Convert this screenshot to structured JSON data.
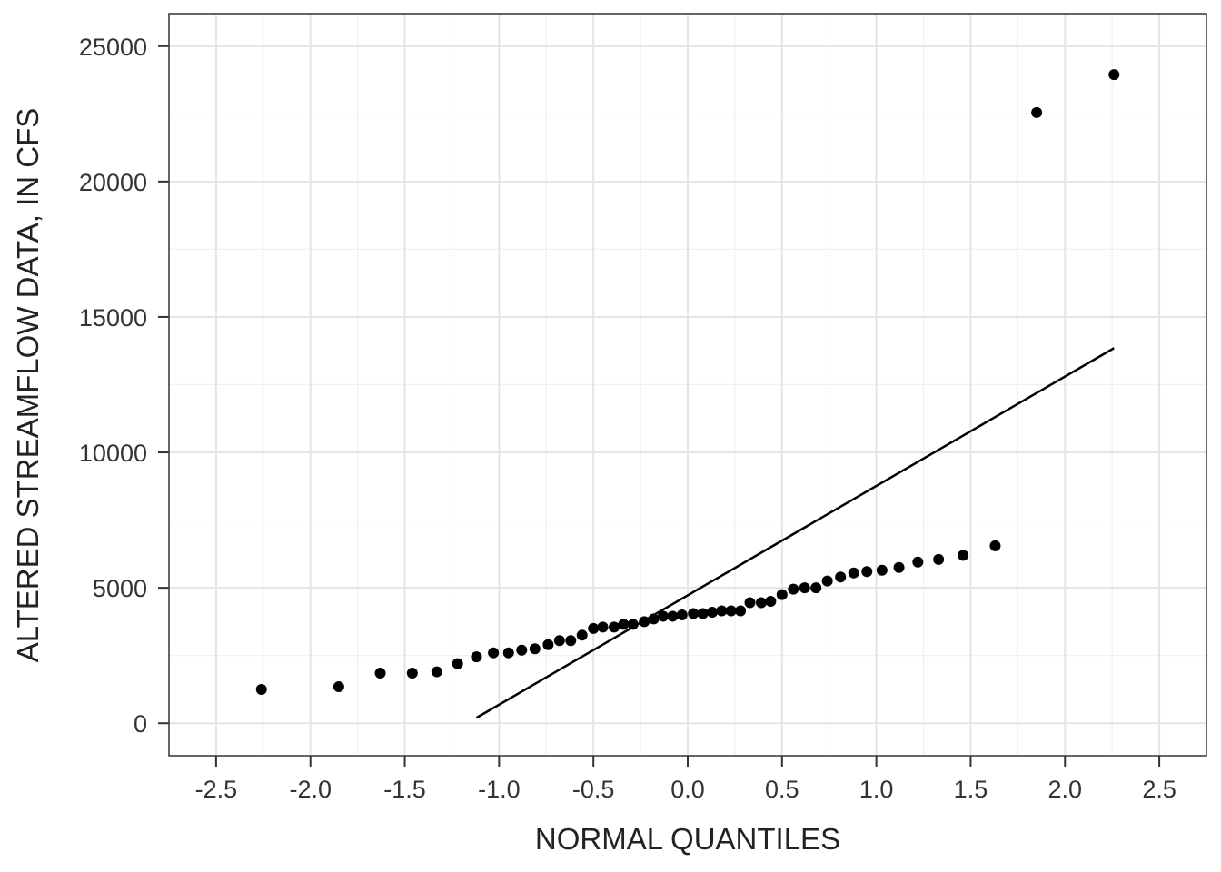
{
  "chart_data": {
    "type": "scatter",
    "xlabel": "NORMAL QUANTILES",
    "ylabel": "ALTERED STREAMFLOW DATA, IN CFS",
    "xlim": [
      -2.75,
      2.75
    ],
    "ylim": [
      -1200,
      26200
    ],
    "x_ticks": [
      -2.5,
      -2.0,
      -1.5,
      -1.0,
      -0.5,
      0.0,
      0.5,
      1.0,
      1.5,
      2.0,
      2.5
    ],
    "x_tick_labels": [
      "-2.5",
      "-2.0",
      "-1.5",
      "-1.0",
      "-0.5",
      "0.0",
      "0.5",
      "1.0",
      "1.5",
      "2.0",
      "2.5"
    ],
    "y_ticks": [
      0,
      5000,
      10000,
      15000,
      20000,
      25000
    ],
    "y_tick_labels": [
      "0",
      "5000",
      "10000",
      "15000",
      "20000",
      "25000"
    ],
    "grid": true,
    "series": [
      {
        "points": [
          [
            -2.26,
            1250
          ],
          [
            -1.85,
            1350
          ],
          [
            -1.63,
            1850
          ],
          [
            -1.46,
            1850
          ],
          [
            -1.33,
            1900
          ],
          [
            -1.22,
            2200
          ],
          [
            -1.12,
            2450
          ],
          [
            -1.03,
            2600
          ],
          [
            -0.95,
            2600
          ],
          [
            -0.88,
            2700
          ],
          [
            -0.81,
            2750
          ],
          [
            -0.74,
            2900
          ],
          [
            -0.68,
            3050
          ],
          [
            -0.62,
            3050
          ],
          [
            -0.56,
            3250
          ],
          [
            -0.5,
            3500
          ],
          [
            -0.45,
            3550
          ],
          [
            -0.39,
            3550
          ],
          [
            -0.34,
            3650
          ],
          [
            -0.29,
            3650
          ],
          [
            -0.23,
            3750
          ],
          [
            -0.18,
            3850
          ],
          [
            -0.13,
            3950
          ],
          [
            -0.08,
            3950
          ],
          [
            -0.03,
            4000
          ],
          [
            0.03,
            4050
          ],
          [
            0.08,
            4050
          ],
          [
            0.13,
            4100
          ],
          [
            0.18,
            4150
          ],
          [
            0.23,
            4150
          ],
          [
            0.28,
            4150
          ],
          [
            0.33,
            4450
          ],
          [
            0.39,
            4450
          ],
          [
            0.44,
            4500
          ],
          [
            0.5,
            4750
          ],
          [
            0.56,
            4950
          ],
          [
            0.62,
            5000
          ],
          [
            0.68,
            5000
          ],
          [
            0.74,
            5250
          ],
          [
            0.81,
            5400
          ],
          [
            0.88,
            5550
          ],
          [
            0.95,
            5600
          ],
          [
            1.03,
            5650
          ],
          [
            1.12,
            5750
          ],
          [
            1.22,
            5950
          ],
          [
            1.33,
            6050
          ],
          [
            1.46,
            6200
          ],
          [
            1.63,
            6550
          ],
          [
            1.85,
            22550
          ],
          [
            2.26,
            23950
          ]
        ]
      }
    ],
    "reference_line": {
      "x": [
        -1.12,
        2.26
      ],
      "y": [
        200,
        13850
      ]
    }
  }
}
